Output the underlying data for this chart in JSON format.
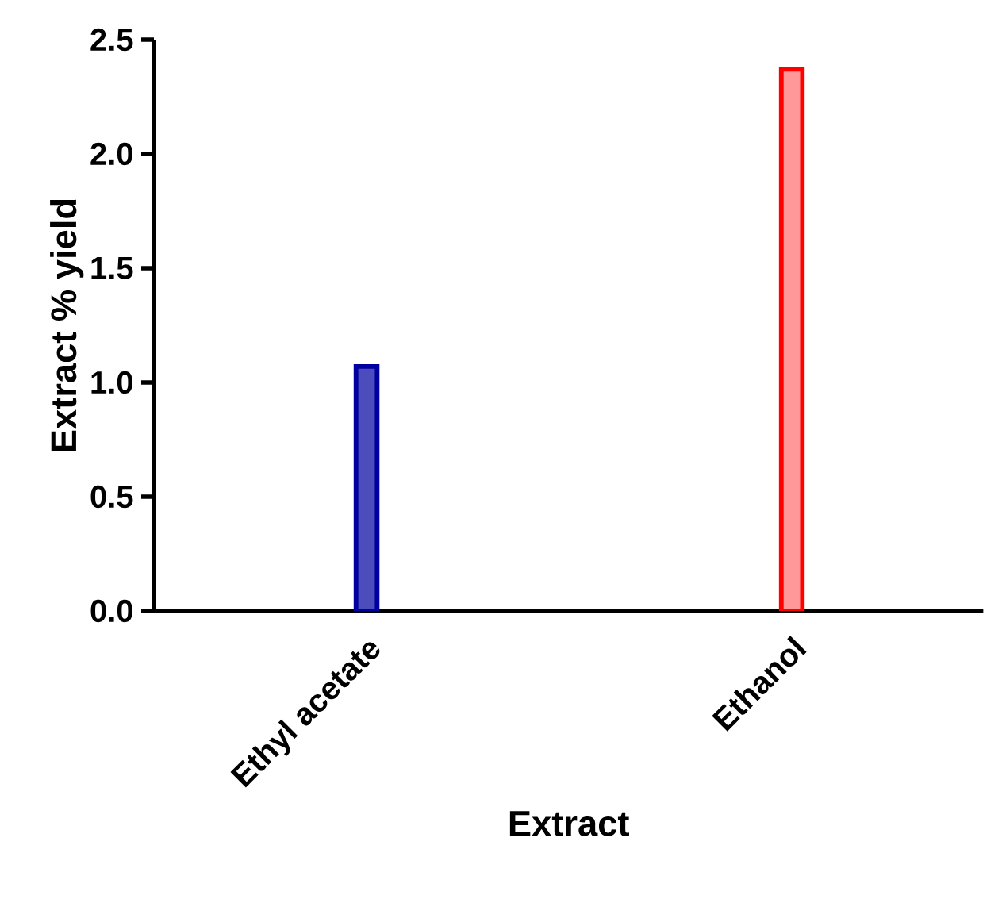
{
  "chart_data": {
    "type": "bar",
    "categories": [
      "Ethyl acetate",
      "Ethanol"
    ],
    "values": [
      1.07,
      2.37
    ],
    "colors": [
      "#0000a0",
      "#ff0000"
    ],
    "xlabel": "Extract",
    "ylabel": "Extract % yield",
    "ylim": [
      0,
      2.5
    ],
    "yticks": [
      {
        "value": 0,
        "label": "0.0"
      },
      0.5,
      {
        "value": 1,
        "label": "1.0"
      },
      1.5,
      {
        "value": 2,
        "label": "2.0"
      },
      2.5
    ]
  }
}
